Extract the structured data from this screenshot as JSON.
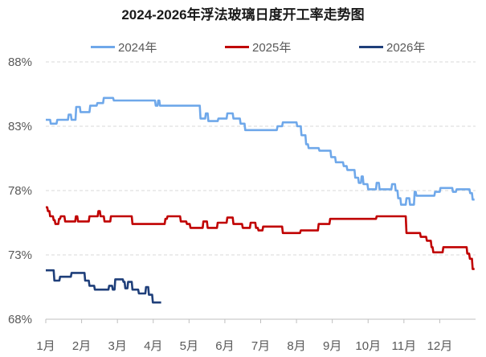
{
  "chart_data": {
    "type": "line",
    "title": "2024-2026年浮法玻璃日度开工率走势图",
    "xlabel": "",
    "ylabel": "",
    "ylim": [
      68,
      88
    ],
    "xlim": [
      1,
      13
    ],
    "x_ticks": [
      {
        "label": "1月",
        "value": 1
      },
      {
        "label": "2月",
        "value": 2
      },
      {
        "label": "3月",
        "value": 3
      },
      {
        "label": "4月",
        "value": 4
      },
      {
        "label": "5月",
        "value": 5
      },
      {
        "label": "6月",
        "value": 6
      },
      {
        "label": "7月",
        "value": 7
      },
      {
        "label": "8月",
        "value": 8
      },
      {
        "label": "9月",
        "value": 9
      },
      {
        "label": "10月",
        "value": 10
      },
      {
        "label": "11月",
        "value": 11
      },
      {
        "label": "12月",
        "value": 12
      }
    ],
    "y_ticks": [
      {
        "label": "68%",
        "value": 68
      },
      {
        "label": "73%",
        "value": 73
      },
      {
        "label": "78%",
        "value": 78
      },
      {
        "label": "83%",
        "value": 83
      },
      {
        "label": "88%",
        "value": 88
      }
    ],
    "grid": "horizontal dashed",
    "legend_position": "top",
    "series": [
      {
        "name": "2024年",
        "color": "#6fa8ea",
        "points": [
          [
            1.0,
            83.5
          ],
          [
            1.12,
            83.5
          ],
          [
            1.14,
            83.2
          ],
          [
            1.3,
            83.2
          ],
          [
            1.32,
            83.5
          ],
          [
            1.62,
            83.5
          ],
          [
            1.64,
            83.9
          ],
          [
            1.7,
            83.9
          ],
          [
            1.72,
            83.5
          ],
          [
            1.83,
            83.5
          ],
          [
            1.85,
            84.5
          ],
          [
            1.95,
            84.5
          ],
          [
            1.97,
            84.1
          ],
          [
            2.22,
            84.1
          ],
          [
            2.24,
            84.6
          ],
          [
            2.42,
            84.6
          ],
          [
            2.44,
            84.8
          ],
          [
            2.6,
            84.8
          ],
          [
            2.62,
            85.2
          ],
          [
            2.88,
            85.2
          ],
          [
            2.9,
            85.0
          ],
          [
            4.05,
            85.0
          ],
          [
            4.07,
            84.6
          ],
          [
            4.12,
            84.6
          ],
          [
            4.14,
            85.0
          ],
          [
            4.17,
            85.0
          ],
          [
            4.19,
            84.6
          ],
          [
            4.25,
            84.6
          ],
          [
            4.27,
            84.6
          ],
          [
            5.3,
            84.6
          ],
          [
            5.32,
            83.6
          ],
          [
            5.45,
            83.6
          ],
          [
            5.47,
            84.0
          ],
          [
            5.52,
            84.0
          ],
          [
            5.54,
            83.4
          ],
          [
            5.8,
            83.4
          ],
          [
            5.82,
            83.6
          ],
          [
            6.05,
            83.6
          ],
          [
            6.07,
            84.0
          ],
          [
            6.22,
            84.0
          ],
          [
            6.24,
            83.6
          ],
          [
            6.42,
            83.6
          ],
          [
            6.44,
            83.2
          ],
          [
            6.55,
            83.2
          ],
          [
            6.57,
            82.7
          ],
          [
            7.45,
            82.7
          ],
          [
            7.47,
            83.0
          ],
          [
            7.6,
            83.0
          ],
          [
            7.62,
            83.3
          ],
          [
            8.0,
            83.3
          ],
          [
            8.02,
            83.0
          ],
          [
            8.12,
            83.0
          ],
          [
            8.14,
            82.3
          ],
          [
            8.25,
            82.3
          ],
          [
            8.27,
            81.6
          ],
          [
            8.32,
            81.6
          ],
          [
            8.34,
            81.3
          ],
          [
            8.62,
            81.3
          ],
          [
            8.64,
            81.1
          ],
          [
            8.95,
            81.1
          ],
          [
            8.97,
            80.6
          ],
          [
            9.08,
            80.6
          ],
          [
            9.1,
            80.2
          ],
          [
            9.3,
            80.2
          ],
          [
            9.32,
            79.9
          ],
          [
            9.4,
            79.9
          ],
          [
            9.42,
            79.6
          ],
          [
            9.62,
            79.6
          ],
          [
            9.64,
            79.0
          ],
          [
            9.72,
            79.0
          ],
          [
            9.74,
            78.6
          ],
          [
            9.8,
            78.6
          ],
          [
            9.82,
            79.1
          ],
          [
            9.85,
            79.1
          ],
          [
            9.87,
            78.5
          ],
          [
            9.98,
            78.5
          ],
          [
            10.0,
            78.1
          ],
          [
            10.22,
            78.1
          ],
          [
            10.24,
            78.6
          ],
          [
            10.3,
            78.6
          ],
          [
            10.32,
            78.1
          ],
          [
            10.65,
            78.1
          ],
          [
            10.67,
            78.5
          ],
          [
            10.75,
            78.5
          ],
          [
            10.77,
            78.0
          ],
          [
            10.82,
            78.0
          ],
          [
            10.84,
            77.4
          ],
          [
            10.9,
            77.4
          ],
          [
            10.92,
            76.9
          ],
          [
            11.05,
            76.9
          ],
          [
            11.07,
            77.4
          ],
          [
            11.15,
            77.4
          ],
          [
            11.17,
            76.9
          ],
          [
            11.28,
            76.9
          ],
          [
            11.3,
            77.9
          ],
          [
            11.33,
            77.9
          ],
          [
            11.35,
            77.6
          ],
          [
            11.85,
            77.6
          ],
          [
            11.87,
            77.9
          ],
          [
            12.0,
            77.9
          ],
          [
            12.02,
            78.2
          ],
          [
            12.35,
            78.2
          ],
          [
            12.37,
            77.9
          ],
          [
            12.45,
            77.9
          ],
          [
            12.47,
            78.1
          ],
          [
            12.83,
            78.1
          ],
          [
            12.85,
            77.8
          ],
          [
            12.9,
            77.8
          ],
          [
            12.92,
            77.3
          ],
          [
            12.97,
            77.3
          ]
        ]
      },
      {
        "name": "2025年",
        "color": "#c00000",
        "points": [
          [
            1.0,
            76.7
          ],
          [
            1.04,
            76.7
          ],
          [
            1.06,
            76.4
          ],
          [
            1.1,
            76.4
          ],
          [
            1.12,
            76.0
          ],
          [
            1.2,
            76.0
          ],
          [
            1.22,
            75.7
          ],
          [
            1.25,
            75.7
          ],
          [
            1.27,
            75.4
          ],
          [
            1.35,
            75.4
          ],
          [
            1.37,
            75.8
          ],
          [
            1.4,
            75.8
          ],
          [
            1.42,
            76.0
          ],
          [
            1.52,
            76.0
          ],
          [
            1.54,
            75.6
          ],
          [
            1.82,
            75.6
          ],
          [
            1.84,
            76.0
          ],
          [
            1.88,
            76.0
          ],
          [
            1.9,
            75.6
          ],
          [
            2.2,
            75.6
          ],
          [
            2.22,
            76.0
          ],
          [
            2.45,
            76.0
          ],
          [
            2.47,
            76.4
          ],
          [
            2.51,
            76.4
          ],
          [
            2.53,
            76.0
          ],
          [
            2.62,
            76.0
          ],
          [
            2.64,
            75.6
          ],
          [
            2.8,
            75.6
          ],
          [
            2.82,
            76.0
          ],
          [
            3.4,
            76.0
          ],
          [
            3.42,
            75.4
          ],
          [
            4.32,
            75.4
          ],
          [
            4.34,
            75.8
          ],
          [
            4.38,
            75.8
          ],
          [
            4.4,
            76.0
          ],
          [
            4.75,
            76.0
          ],
          [
            4.77,
            75.6
          ],
          [
            4.92,
            75.6
          ],
          [
            4.94,
            75.4
          ],
          [
            5.02,
            75.4
          ],
          [
            5.04,
            75.1
          ],
          [
            5.38,
            75.1
          ],
          [
            5.4,
            75.6
          ],
          [
            5.5,
            75.6
          ],
          [
            5.52,
            75.1
          ],
          [
            5.78,
            75.1
          ],
          [
            5.8,
            75.5
          ],
          [
            6.05,
            75.5
          ],
          [
            6.07,
            75.9
          ],
          [
            6.22,
            75.9
          ],
          [
            6.24,
            75.4
          ],
          [
            6.48,
            75.4
          ],
          [
            6.5,
            75.1
          ],
          [
            6.7,
            75.1
          ],
          [
            6.72,
            75.5
          ],
          [
            6.85,
            75.5
          ],
          [
            6.87,
            75.1
          ],
          [
            6.92,
            75.1
          ],
          [
            6.94,
            74.9
          ],
          [
            7.05,
            74.9
          ],
          [
            7.07,
            75.2
          ],
          [
            7.6,
            75.2
          ],
          [
            7.62,
            74.7
          ],
          [
            8.1,
            74.7
          ],
          [
            8.12,
            74.9
          ],
          [
            8.45,
            74.9
          ],
          [
            8.47,
            74.9
          ],
          [
            8.6,
            74.9
          ],
          [
            8.62,
            75.4
          ],
          [
            8.92,
            75.4
          ],
          [
            8.94,
            75.8
          ],
          [
            10.22,
            75.8
          ],
          [
            10.24,
            76.0
          ],
          [
            11.05,
            76.0
          ],
          [
            11.07,
            74.7
          ],
          [
            11.45,
            74.7
          ],
          [
            11.47,
            74.4
          ],
          [
            11.62,
            74.4
          ],
          [
            11.64,
            74.1
          ],
          [
            11.75,
            74.1
          ],
          [
            11.77,
            73.6
          ],
          [
            11.8,
            73.6
          ],
          [
            11.82,
            73.2
          ],
          [
            12.08,
            73.2
          ],
          [
            12.1,
            73.6
          ],
          [
            12.75,
            73.6
          ],
          [
            12.77,
            73.1
          ],
          [
            12.82,
            73.1
          ],
          [
            12.84,
            72.7
          ],
          [
            12.9,
            72.7
          ],
          [
            12.92,
            71.9
          ],
          [
            12.97,
            71.9
          ]
        ]
      },
      {
        "name": "2026年",
        "color": "#1f3f7a",
        "points": [
          [
            1.0,
            71.8
          ],
          [
            1.22,
            71.8
          ],
          [
            1.24,
            71.0
          ],
          [
            1.38,
            71.0
          ],
          [
            1.4,
            71.3
          ],
          [
            1.7,
            71.3
          ],
          [
            1.72,
            71.6
          ],
          [
            2.08,
            71.6
          ],
          [
            2.1,
            71.0
          ],
          [
            2.2,
            71.0
          ],
          [
            2.22,
            70.6
          ],
          [
            2.35,
            70.6
          ],
          [
            2.37,
            70.3
          ],
          [
            2.75,
            70.3
          ],
          [
            2.77,
            70.6
          ],
          [
            2.85,
            70.6
          ],
          [
            2.87,
            70.3
          ],
          [
            2.92,
            70.3
          ],
          [
            2.94,
            71.1
          ],
          [
            3.15,
            71.1
          ],
          [
            3.17,
            70.9
          ],
          [
            3.2,
            70.9
          ],
          [
            3.22,
            70.4
          ],
          [
            3.28,
            70.4
          ],
          [
            3.3,
            70.9
          ],
          [
            3.4,
            70.9
          ],
          [
            3.42,
            70.3
          ],
          [
            3.58,
            70.3
          ],
          [
            3.6,
            70.0
          ],
          [
            3.78,
            70.0
          ],
          [
            3.8,
            70.5
          ],
          [
            3.86,
            70.5
          ],
          [
            3.88,
            69.9
          ],
          [
            3.97,
            69.9
          ],
          [
            3.99,
            69.3
          ],
          [
            4.22,
            69.3
          ]
        ]
      }
    ]
  }
}
